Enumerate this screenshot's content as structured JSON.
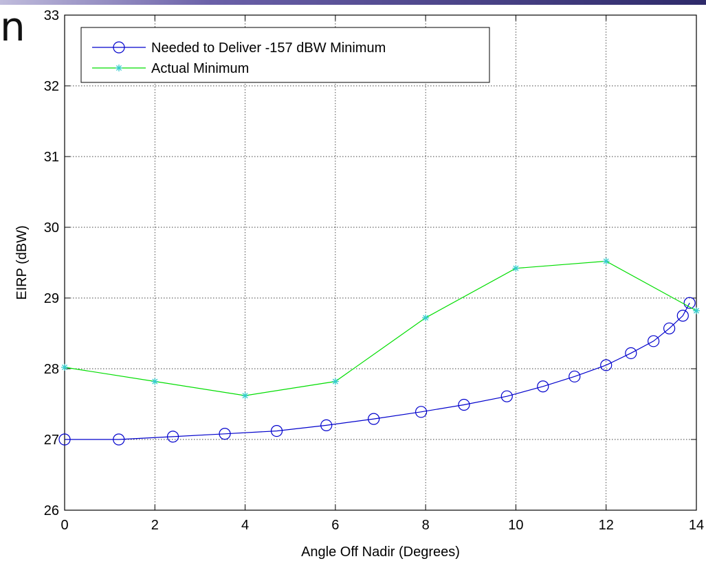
{
  "slide": {
    "letter": "n"
  },
  "chart_data": {
    "type": "line",
    "title": "",
    "xlabel": "Angle Off Nadir (Degrees)",
    "ylabel": "EIRP (dBW)",
    "xlim": [
      0,
      14
    ],
    "ylim": [
      26,
      33
    ],
    "xticks": [
      0,
      2,
      4,
      6,
      8,
      10,
      12,
      14
    ],
    "yticks": [
      26,
      27,
      28,
      29,
      30,
      31,
      32,
      33
    ],
    "grid": true,
    "legend_position": "top-left",
    "series": [
      {
        "name": "Needed to Deliver -157 dBW Minimum",
        "color": "#0000cc",
        "marker": "circle",
        "x": [
          0,
          1.2,
          2.4,
          3.55,
          4.7,
          5.8,
          6.85,
          7.9,
          8.85,
          9.8,
          10.6,
          11.3,
          12.0,
          12.55,
          13.05,
          13.4,
          13.7,
          13.85
        ],
        "y": [
          27.0,
          27.0,
          27.04,
          27.08,
          27.12,
          27.2,
          27.29,
          27.39,
          27.49,
          27.61,
          27.75,
          27.89,
          28.05,
          28.22,
          28.39,
          28.57,
          28.75,
          28.93
        ]
      },
      {
        "name": "Actual Minimum",
        "color": "#00dd00",
        "marker_color": "#33cccc",
        "marker": "star",
        "x": [
          0,
          2,
          4,
          6,
          8,
          10,
          12,
          14
        ],
        "y": [
          28.02,
          27.82,
          27.62,
          27.82,
          28.72,
          29.42,
          29.52,
          28.82
        ]
      }
    ]
  }
}
